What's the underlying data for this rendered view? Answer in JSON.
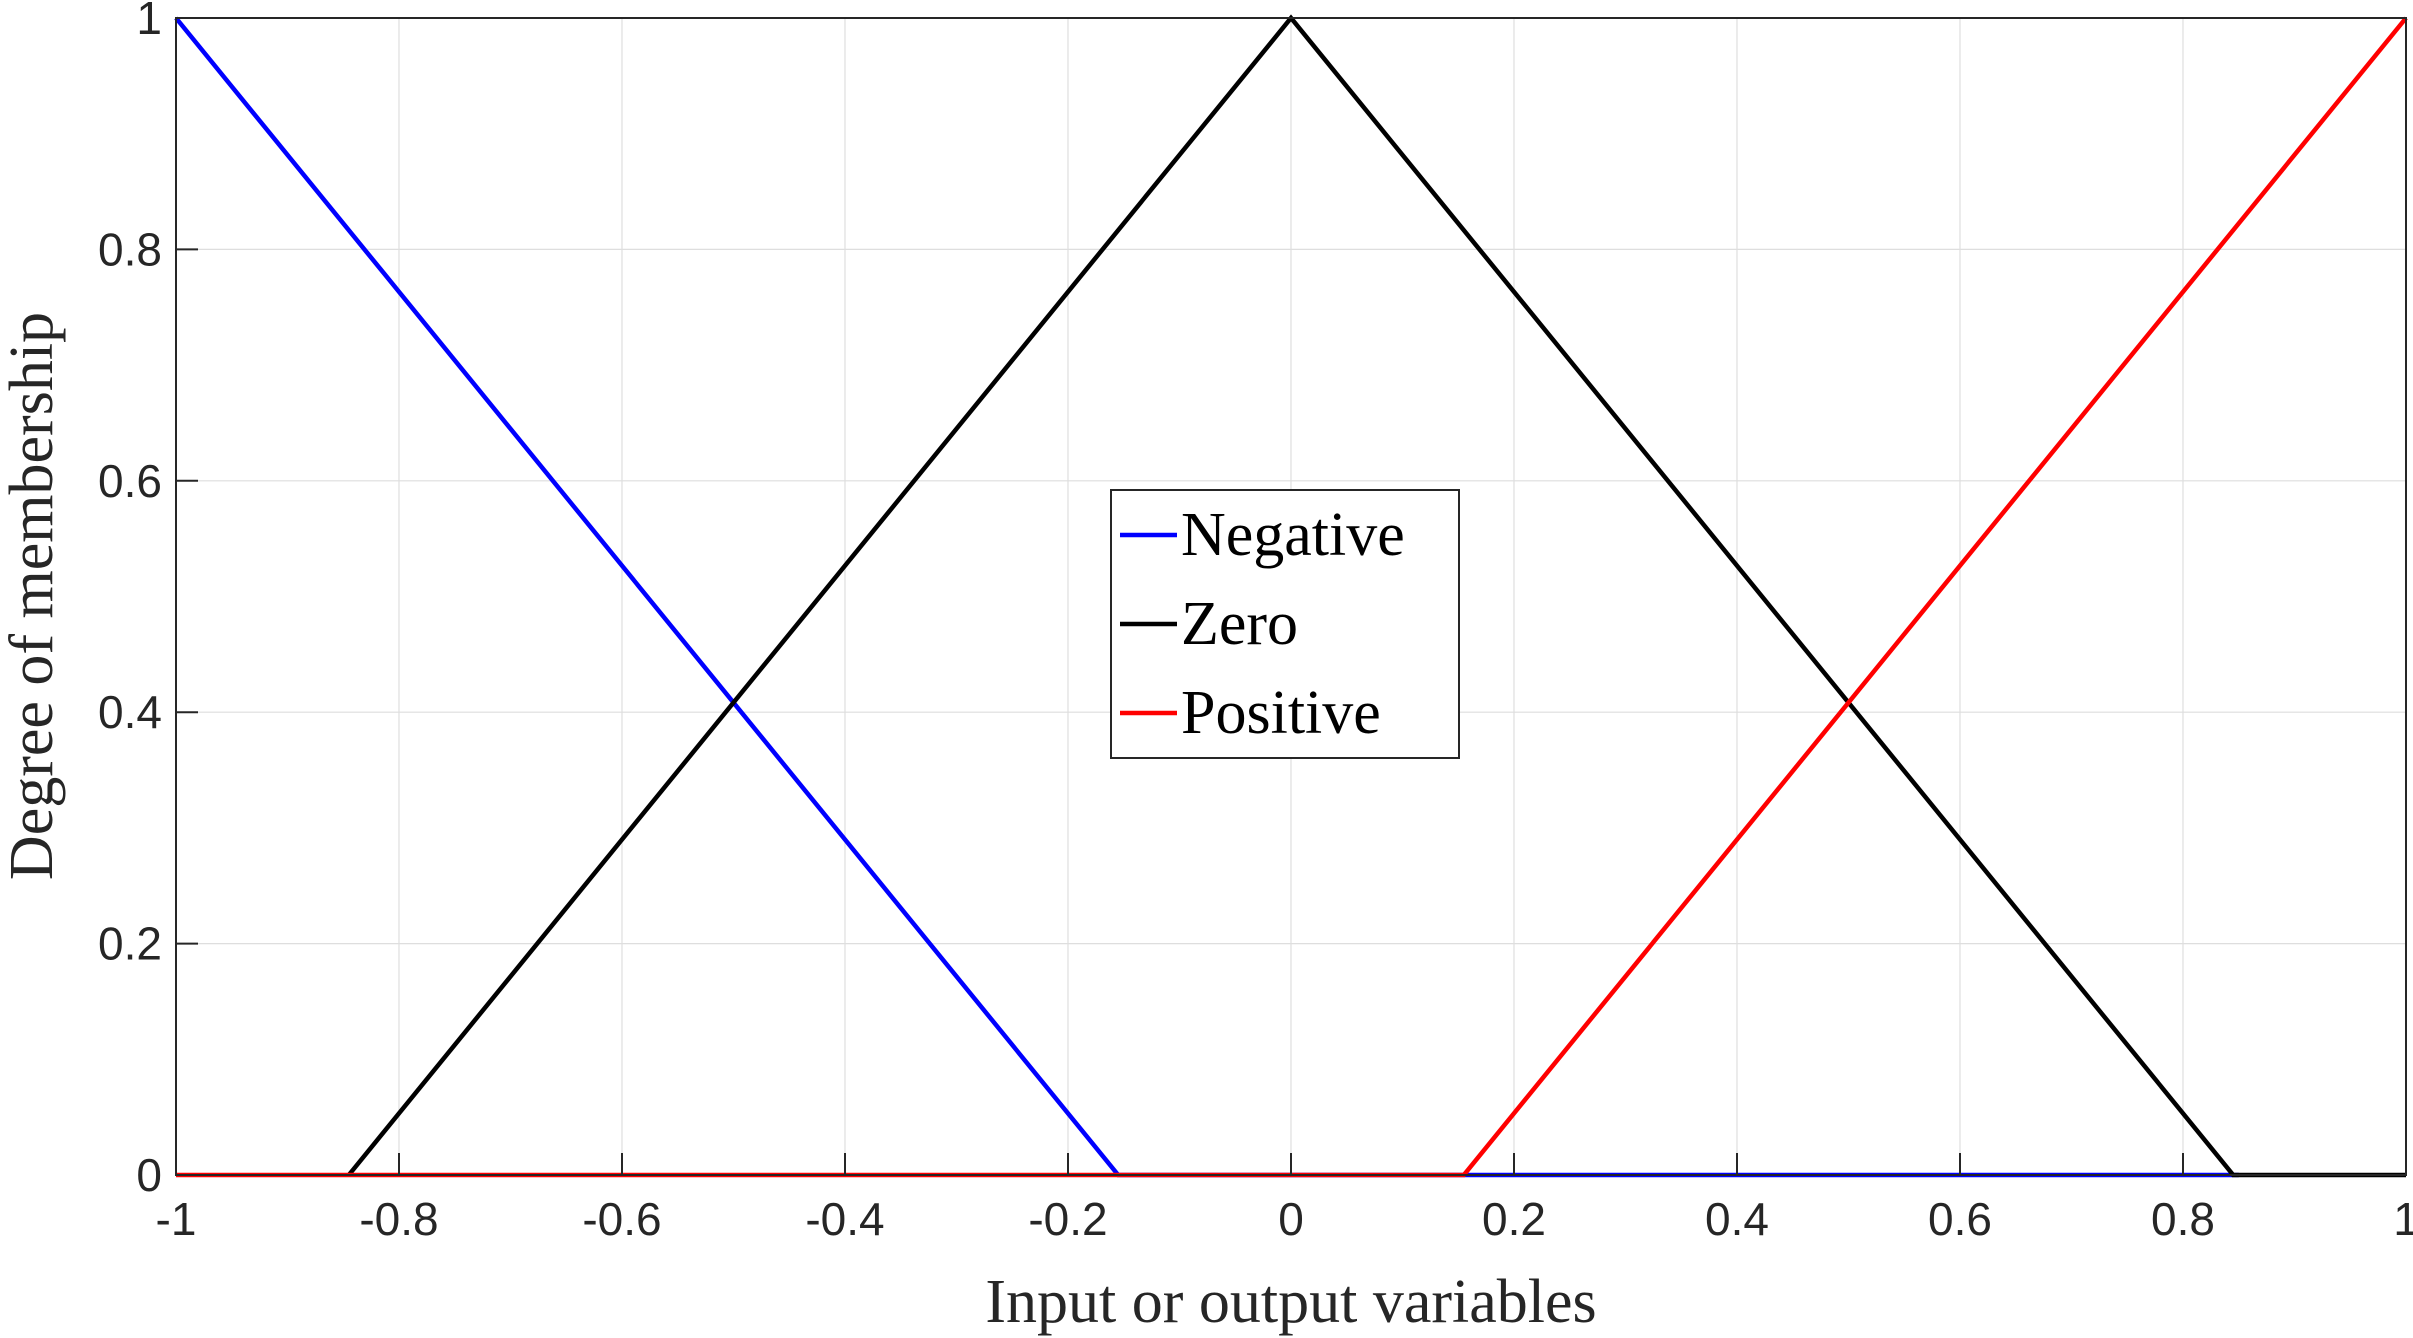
{
  "chart_data": {
    "type": "line",
    "title": "",
    "xlabel": "Input or output variables",
    "ylabel": "Degree of membership",
    "xlim": [
      -1,
      1
    ],
    "ylim": [
      0,
      1
    ],
    "xticks": [
      "-1",
      "-0.8",
      "-0.6",
      "-0.4",
      "-0.2",
      "0",
      "0.2",
      "0.4",
      "0.6",
      "0.8",
      "1"
    ],
    "yticks": [
      "0",
      "0.2",
      "0.4",
      "0.6",
      "0.8",
      "1"
    ],
    "grid": true,
    "legend_position": "center",
    "series": [
      {
        "name": "Negative",
        "color": "#0000ff",
        "x": [
          -1,
          -0.155,
          0.85
        ],
        "y": [
          1,
          0,
          0
        ]
      },
      {
        "name": "Zero",
        "color": "#000000",
        "x": [
          -0.845,
          0,
          0.845,
          1
        ],
        "y": [
          0,
          1,
          0,
          0
        ]
      },
      {
        "name": "Positive",
        "color": "#ff0000",
        "x": [
          -1,
          0.155,
          1
        ],
        "y": [
          0,
          0,
          1
        ]
      }
    ]
  }
}
